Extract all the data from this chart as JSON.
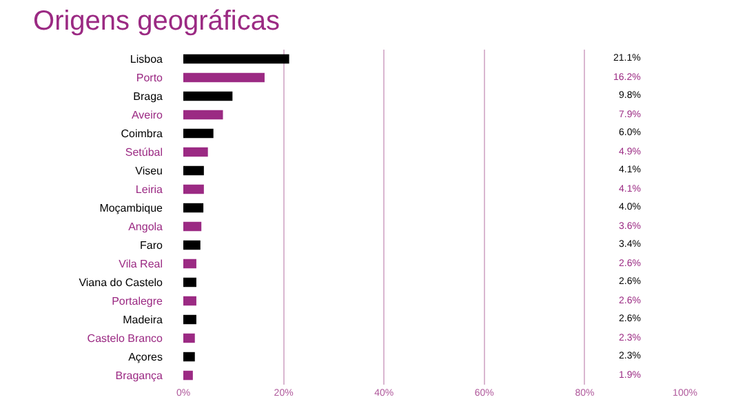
{
  "chart_data": {
    "type": "bar",
    "orientation": "horizontal",
    "title": "Origens geográficas",
    "categories": [
      "Lisboa",
      "Porto",
      "Braga",
      "Aveiro",
      "Coimbra",
      "Setúbal",
      "Viseu",
      "Leiria",
      "Moçambique",
      "Angola",
      "Faro",
      "Vila Real",
      "Viana do Castelo",
      "Portalegre",
      "Madeira",
      "Castelo Branco",
      "Açores",
      "Bragança"
    ],
    "values": [
      21.1,
      16.2,
      9.8,
      7.9,
      6.0,
      4.9,
      4.1,
      4.1,
      4.0,
      3.6,
      3.4,
      2.6,
      2.6,
      2.6,
      2.6,
      2.3,
      2.3,
      1.9
    ],
    "colors": [
      "#000000",
      "#9b2a83",
      "#000000",
      "#9b2a83",
      "#000000",
      "#9b2a83",
      "#000000",
      "#9b2a83",
      "#000000",
      "#9b2a83",
      "#000000",
      "#9b2a83",
      "#000000",
      "#9b2a83",
      "#000000",
      "#9b2a83",
      "#000000",
      "#9b2a83"
    ],
    "value_labels": [
      "21.1%",
      "16.2%",
      "9.8%",
      "7.9%",
      "6.0%",
      "4.9%",
      "4.1%",
      "4.1%",
      "4.0%",
      "3.6%",
      "3.4%",
      "2.6%",
      "2.6%",
      "2.6%",
      "2.6%",
      "2.3%",
      "2.3%",
      "1.9%"
    ],
    "xlim": [
      0,
      100
    ],
    "xticks": [
      {
        "value": 0,
        "label": "0%"
      },
      {
        "value": 20,
        "label": "20%"
      },
      {
        "value": 40,
        "label": "40%"
      },
      {
        "value": 60,
        "label": "60%"
      },
      {
        "value": 80,
        "label": "80%"
      },
      {
        "value": 100,
        "label": "100%"
      }
    ],
    "grid": "x",
    "legend": false
  }
}
